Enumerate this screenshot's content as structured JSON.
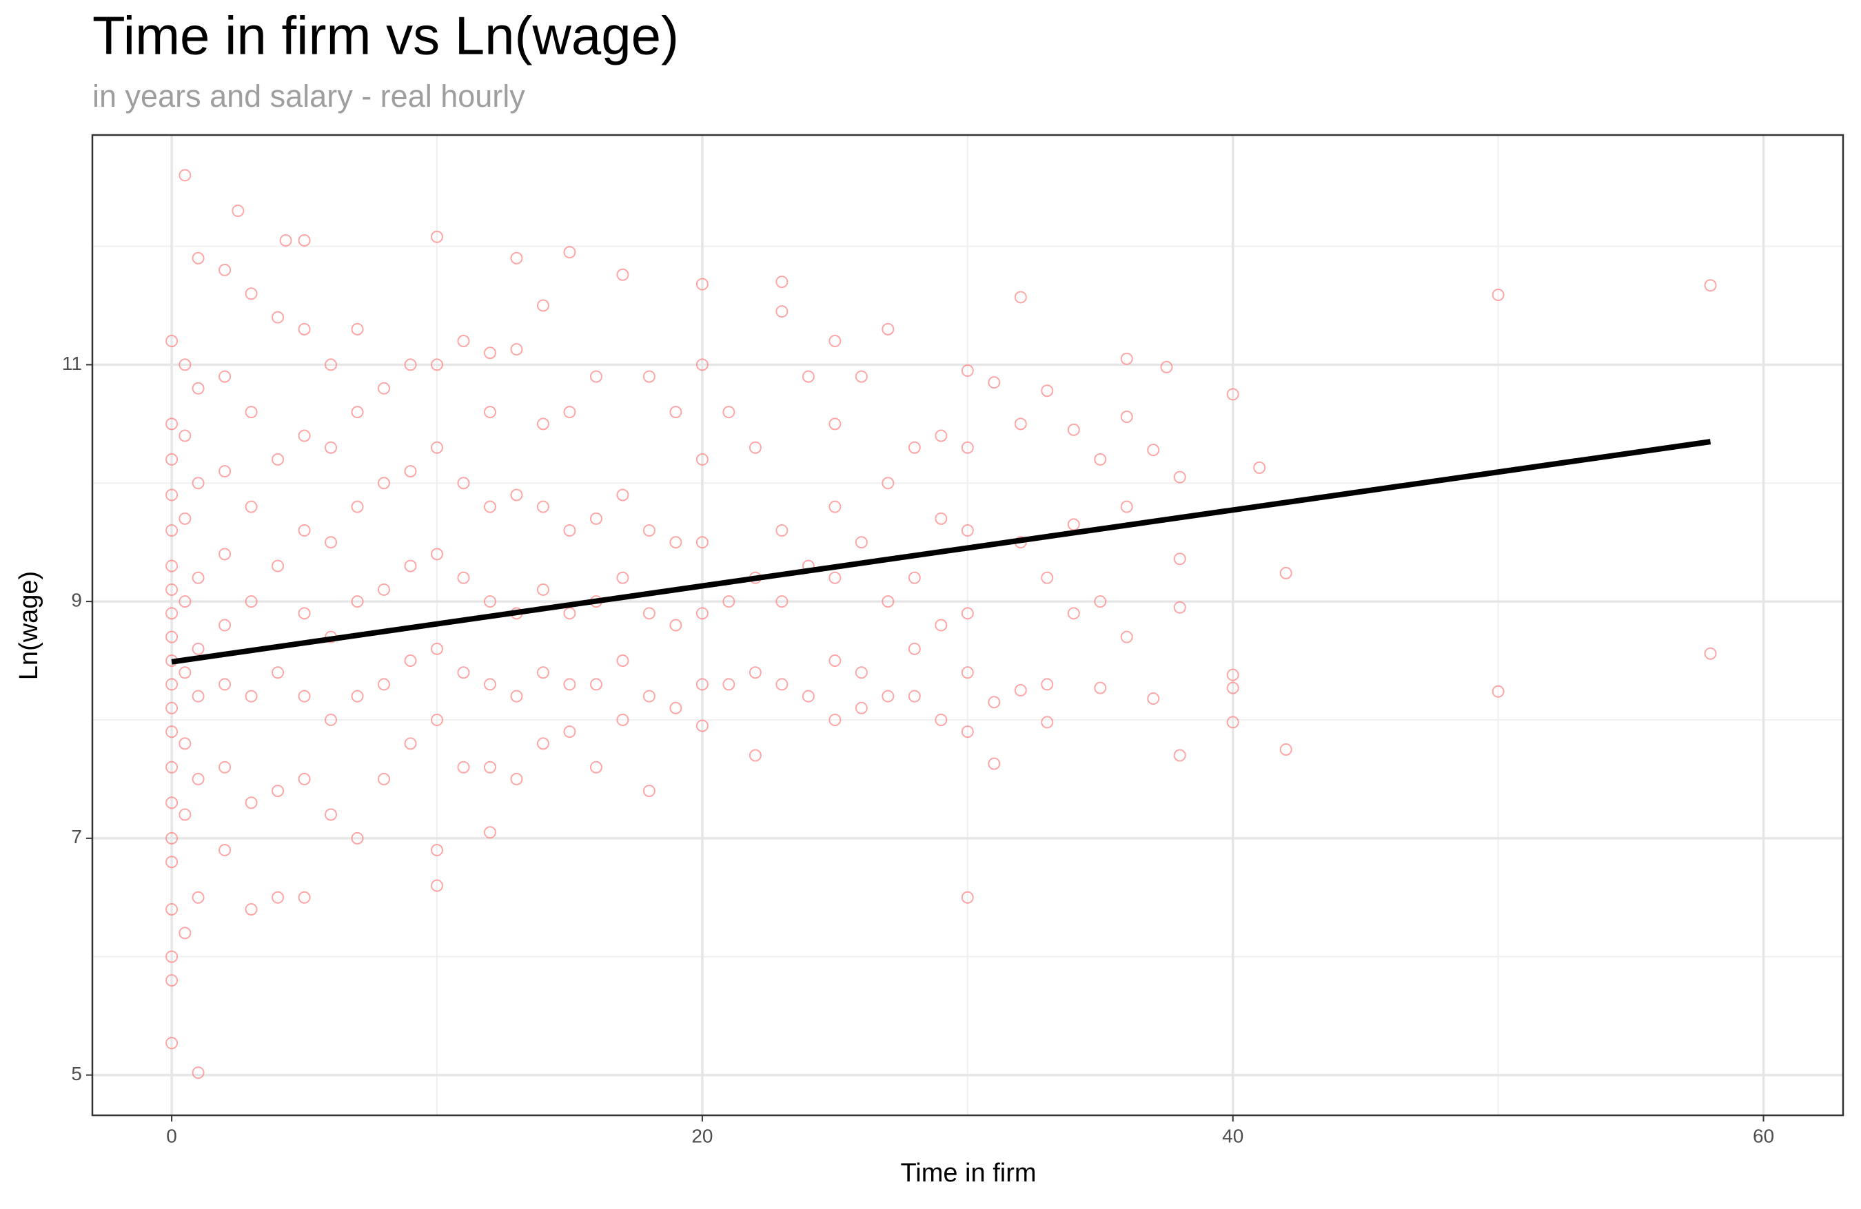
{
  "chart_data": {
    "type": "scatter",
    "title": "Time in firm vs Ln(wage)",
    "subtitle": "in years and salary - real hourly",
    "x_label": "Time in firm",
    "y_label": "Ln(wage)",
    "color": "#ff6b6b",
    "xlim": [
      -2.99,
      63.0
    ],
    "ylim": [
      4.66,
      12.94
    ],
    "xticks": [
      0,
      20,
      40,
      60
    ],
    "yticks": [
      5,
      7,
      9,
      11
    ],
    "x_minor_grid": [
      10,
      30,
      50
    ],
    "y_minor_grid": [
      6,
      8,
      10,
      12
    ],
    "grid": true,
    "x": [
      0,
      0,
      0,
      0,
      0,
      0,
      0,
      0,
      0,
      0,
      0,
      0,
      0,
      0,
      0,
      0,
      0,
      0,
      0,
      0,
      0,
      0.5,
      0.5,
      0.5,
      0.5,
      0.5,
      0.5,
      0.5,
      0.5,
      0.5,
      1,
      1,
      1,
      1,
      1,
      1,
      1,
      1,
      1,
      2,
      2,
      2,
      2,
      2,
      2,
      2,
      2,
      2.5,
      3,
      3,
      3,
      3,
      3,
      3,
      3,
      4,
      4,
      4,
      4,
      4,
      4,
      4.3,
      5,
      5,
      5,
      5,
      5,
      5,
      5,
      5,
      6,
      6,
      6,
      6,
      6,
      6,
      7,
      7,
      7,
      7,
      7,
      7,
      8,
      8,
      8,
      8,
      8,
      9,
      9,
      9,
      9,
      9,
      10,
      10,
      10,
      10,
      10,
      10,
      10,
      10,
      11,
      11,
      11,
      11,
      11,
      12,
      12,
      12,
      12,
      12,
      12,
      12,
      13,
      13,
      13,
      13,
      13,
      13,
      14,
      14,
      14,
      14,
      14,
      14,
      15,
      15,
      15,
      15,
      15,
      15,
      16,
      16,
      16,
      16,
      16,
      17,
      17,
      17,
      17,
      17,
      18,
      18,
      18,
      18,
      18,
      19,
      19,
      19,
      19,
      20,
      20,
      20,
      20,
      20,
      20,
      20,
      21,
      21,
      21,
      22,
      22,
      22,
      22,
      23,
      23,
      23,
      23,
      23,
      24,
      24,
      24,
      25,
      25,
      25,
      25,
      25,
      25,
      26,
      26,
      26,
      26,
      27,
      27,
      27,
      27,
      28,
      28,
      28,
      28,
      29,
      29,
      29,
      29,
      30,
      30,
      30,
      30,
      30,
      30,
      30,
      31,
      31,
      31,
      32,
      32,
      32,
      32,
      33,
      33,
      33,
      33,
      34,
      34,
      34,
      35,
      35,
      35,
      36,
      36,
      36,
      36,
      37,
      37,
      37.5,
      38,
      38,
      38,
      38,
      40,
      40,
      40,
      40,
      41,
      42,
      42,
      50,
      50,
      58,
      58
    ],
    "values": [
      5.27,
      5.8,
      6.0,
      6.4,
      6.8,
      7.0,
      7.3,
      7.6,
      7.9,
      8.1,
      8.3,
      8.5,
      8.7,
      8.9,
      9.1,
      9.3,
      9.6,
      9.9,
      10.2,
      10.5,
      11.2,
      12.6,
      6.2,
      7.2,
      7.8,
      8.4,
      9.0,
      9.7,
      10.4,
      11.0,
      5.02,
      6.5,
      7.5,
      8.2,
      8.6,
      9.2,
      10.0,
      10.8,
      11.9,
      6.9,
      7.6,
      8.3,
      8.8,
      9.4,
      10.1,
      10.9,
      11.8,
      12.3,
      6.4,
      7.3,
      8.2,
      9.0,
      9.8,
      10.6,
      11.6,
      6.5,
      7.4,
      8.4,
      9.3,
      10.2,
      11.4,
      12.05,
      6.5,
      7.5,
      8.2,
      8.9,
      9.6,
      10.4,
      11.3,
      12.05,
      7.2,
      8.0,
      8.7,
      9.5,
      10.3,
      11.0,
      7.0,
      8.2,
      9.0,
      9.8,
      10.6,
      11.3,
      7.5,
      8.3,
      9.1,
      10.0,
      10.8,
      7.8,
      8.5,
      9.3,
      10.1,
      11.0,
      6.6,
      6.9,
      8.0,
      8.6,
      9.4,
      10.3,
      11.0,
      12.08,
      7.6,
      8.4,
      9.2,
      10.0,
      11.2,
      7.05,
      7.6,
      8.3,
      9.0,
      9.8,
      10.6,
      11.1,
      7.5,
      8.2,
      8.9,
      9.9,
      11.13,
      11.9,
      7.8,
      8.4,
      9.1,
      9.8,
      10.5,
      11.5,
      7.9,
      8.3,
      8.9,
      9.6,
      10.6,
      11.95,
      7.6,
      8.3,
      9.0,
      9.7,
      10.9,
      8.0,
      8.5,
      9.2,
      9.9,
      11.76,
      7.4,
      8.2,
      8.9,
      9.6,
      10.9,
      8.1,
      8.8,
      9.5,
      10.6,
      7.95,
      8.3,
      8.9,
      9.5,
      10.2,
      11.0,
      11.68,
      8.3,
      9.0,
      10.6,
      7.7,
      8.4,
      9.2,
      10.3,
      8.3,
      9.0,
      9.6,
      11.45,
      11.7,
      8.2,
      9.3,
      10.9,
      8.0,
      8.5,
      9.2,
      9.8,
      10.5,
      11.2,
      8.1,
      8.4,
      9.5,
      10.9,
      8.2,
      9.0,
      10.0,
      11.3,
      8.2,
      8.6,
      9.2,
      10.3,
      8.0,
      8.8,
      9.7,
      10.4,
      6.5,
      7.9,
      8.4,
      8.9,
      9.6,
      10.3,
      10.95,
      7.63,
      8.15,
      10.85,
      8.25,
      9.5,
      10.5,
      11.57,
      7.98,
      8.3,
      9.2,
      10.78,
      8.9,
      9.65,
      10.45,
      8.27,
      9.0,
      10.2,
      8.7,
      9.8,
      10.56,
      11.05,
      8.18,
      10.28,
      10.98,
      7.7,
      8.95,
      9.36,
      10.05,
      7.98,
      8.27,
      8.38,
      10.75,
      10.13,
      7.75,
      9.24,
      8.24,
      11.59,
      8.56,
      11.67
    ],
    "trend": {
      "x": [
        0,
        58
      ],
      "values": [
        8.49,
        10.35
      ],
      "color": "#000000"
    }
  }
}
